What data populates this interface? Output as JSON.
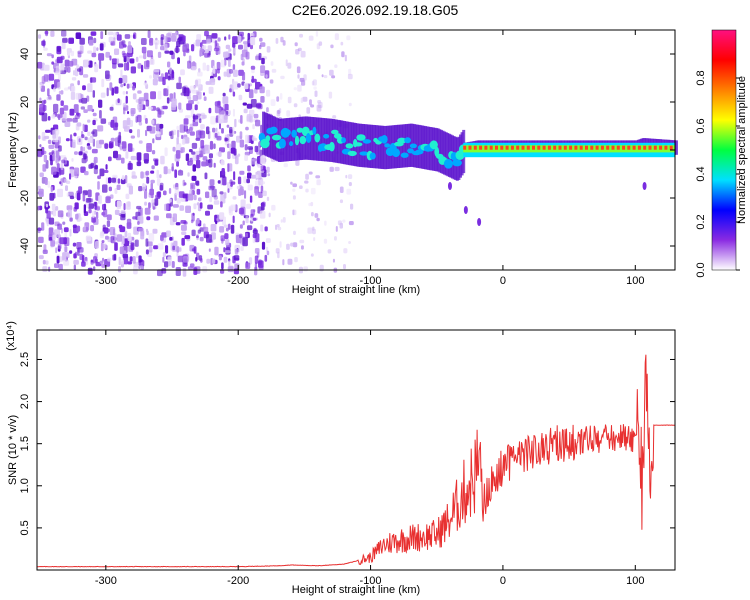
{
  "title": "C2E6.2026.092.19.18.G05",
  "chart_data": [
    {
      "type": "heatmap",
      "xlabel": "Height of straight line (km)",
      "ylabel": "Frequency (Hz)",
      "xlim": [
        -352,
        130
      ],
      "ylim": [
        -50,
        50
      ],
      "xticks": [
        -300,
        -200,
        -100,
        0,
        100
      ],
      "yticks": [
        -40,
        -20,
        0,
        20,
        40
      ],
      "colorbar": {
        "label": "Normalized spectral amplitude",
        "range": [
          0,
          1
        ],
        "ticks": [
          "0.0",
          "0.2",
          "0.4",
          "0.6",
          "0.8"
        ],
        "tick_values": [
          0.0,
          0.2,
          0.4,
          0.6,
          0.8
        ],
        "colors": [
          "#ffffff",
          "#8a2be2",
          "#0000ff",
          "#00e0ff",
          "#00ff40",
          "#ffff00",
          "#ff8000",
          "#ff0000",
          "#ff1080"
        ]
      },
      "ridge": {
        "x": [
          -182,
          -170,
          -150,
          -130,
          -110,
          -90,
          -70,
          -50,
          -35,
          -30,
          -20,
          0,
          20,
          60,
          100,
          105,
          130
        ],
        "y": [
          7,
          4,
          5,
          4,
          2,
          1,
          2,
          0,
          -4,
          0,
          1,
          1,
          1,
          1,
          1,
          2,
          1
        ]
      }
    },
    {
      "type": "line",
      "xlabel": "Height of straight line (km)",
      "ylabel": "SNR (10 * v/v)",
      "multiplier": "(x10⁴)",
      "xlim": [
        -352,
        130
      ],
      "ylim": [
        0,
        2.85
      ],
      "xticks": [
        -300,
        -200,
        -100,
        0,
        100
      ],
      "yticks": [
        "0.5",
        "1.0",
        "1.5",
        "2.0",
        "2.5"
      ],
      "ytick_values": [
        0.5,
        1.0,
        1.5,
        2.0,
        2.5
      ],
      "color": "#e83030",
      "series": [
        {
          "x": [
            -352,
            -300,
            -250,
            -200,
            -170,
            -160,
            -140,
            -120,
            -100,
            -90,
            -80,
            -70,
            -60,
            -50,
            -40,
            -30,
            -22,
            -18,
            -15,
            -10,
            -5,
            0,
            10,
            20,
            30,
            40,
            50,
            60,
            70,
            80,
            90,
            95,
            100,
            103,
            105,
            107,
            109,
            111,
            113,
            130
          ],
          "y": [
            0.04,
            0.04,
            0.04,
            0.04,
            0.05,
            0.06,
            0.05,
            0.07,
            0.15,
            0.3,
            0.35,
            0.38,
            0.4,
            0.42,
            0.6,
            0.9,
            1.1,
            1.3,
            1.0,
            1.25,
            1.35,
            1.45,
            1.55,
            1.62,
            1.67,
            1.72,
            1.73,
            1.71,
            1.72,
            1.74,
            1.75,
            1.76,
            1.7,
            1.4,
            1.0,
            1.8,
            2.4,
            1.2,
            1.72,
            1.72
          ]
        }
      ]
    }
  ]
}
